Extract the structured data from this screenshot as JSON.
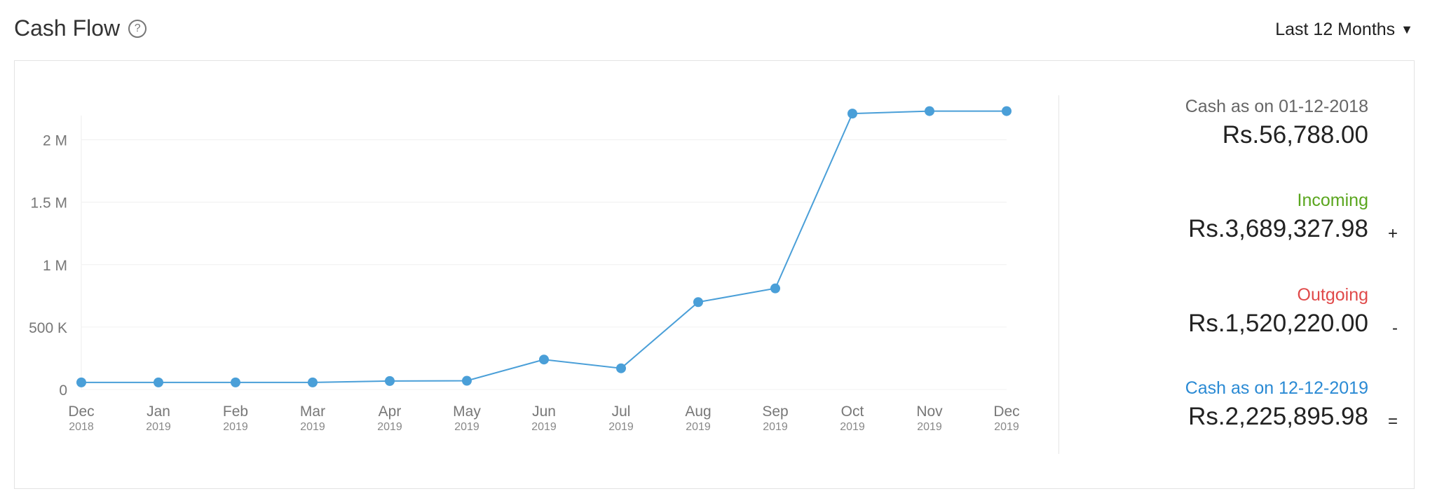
{
  "header": {
    "title": "Cash Flow",
    "help_glyph": "?",
    "period_label": "Last 12 Months",
    "period_caret": "▼"
  },
  "summary": {
    "opening_label": "Cash as on 01-12-2018",
    "opening_value": "Rs.56,788.00",
    "incoming_label": "Incoming",
    "incoming_value": "Rs.3,689,327.98",
    "incoming_op": "+",
    "outgoing_label": "Outgoing",
    "outgoing_value": "Rs.1,520,220.00",
    "outgoing_op": "-",
    "closing_label": "Cash as on 12-12-2019",
    "closing_value": "Rs.2,225,895.98",
    "closing_op": "=",
    "colors": {
      "incoming": "#5aa61e",
      "outgoing": "#e04a4a",
      "closing": "#2a8ad4",
      "opening": "#666666"
    }
  },
  "chart_data": {
    "type": "line",
    "categories": [
      [
        "Dec",
        "2018"
      ],
      [
        "Jan",
        "2019"
      ],
      [
        "Feb",
        "2019"
      ],
      [
        "Mar",
        "2019"
      ],
      [
        "Apr",
        "2019"
      ],
      [
        "May",
        "2019"
      ],
      [
        "Jun",
        "2019"
      ],
      [
        "Jul",
        "2019"
      ],
      [
        "Aug",
        "2019"
      ],
      [
        "Sep",
        "2019"
      ],
      [
        "Oct",
        "2019"
      ],
      [
        "Nov",
        "2019"
      ],
      [
        "Dec",
        "2019"
      ]
    ],
    "values": [
      56788,
      56788,
      56788,
      56788,
      68000,
      70000,
      240000,
      170000,
      700000,
      810000,
      2210000,
      2230000,
      2230000
    ],
    "ylim": [
      0,
      2250000
    ],
    "yticks": [
      0,
      500000,
      1000000,
      1500000,
      2000000
    ],
    "ytick_labels": [
      "0",
      "500 K",
      "1 M",
      "1.5 M",
      "2 M"
    ],
    "grid": true,
    "color": "#4a9fd8"
  }
}
